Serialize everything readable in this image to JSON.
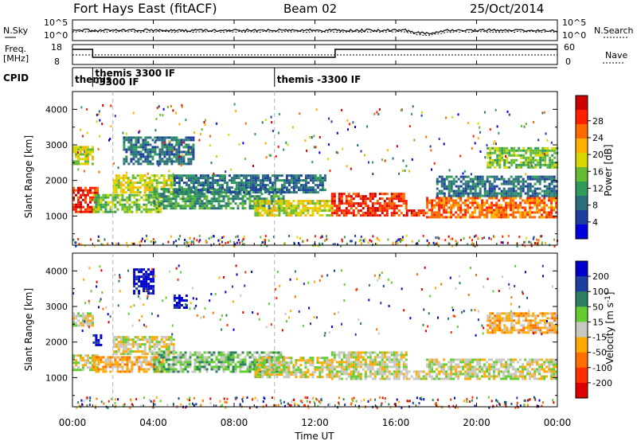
{
  "header": {
    "title": "Fort Hays East (fitACF)",
    "beam": "Beam 02",
    "date": "25/Oct/2014"
  },
  "noise_panel": {
    "left_label": "N.Sky",
    "left_ticks": [
      "10^5",
      "10^0"
    ],
    "right_label": "N.Search",
    "right_ticks": [
      "10^5",
      "10^0"
    ]
  },
  "freq_panel": {
    "left_label_1": "Freq.",
    "left_label_2": "[MHz]",
    "left_ticks": [
      "18",
      "8"
    ],
    "right_label": "Nave",
    "right_ticks": [
      "60",
      "0"
    ]
  },
  "cpid_panel": {
    "label": "CPID",
    "segments": [
      {
        "start_hour": 0.0,
        "end_hour": 1.0,
        "text": [
          "themis"
        ]
      },
      {
        "start_hour": 1.0,
        "end_hour": 10.0,
        "text": [
          "themis 3300 IF",
          "-3300 IF"
        ]
      },
      {
        "start_hour": 10.0,
        "end_hour": 24.0,
        "text": [
          "themis -3300 IF"
        ]
      }
    ]
  },
  "time_axis": {
    "label": "Time UT",
    "ticks": [
      "00:00",
      "04:00",
      "08:00",
      "12:00",
      "16:00",
      "20:00",
      "00:00"
    ]
  },
  "chart_data": [
    {
      "type": "heatmap",
      "name": "power",
      "ylabel": "Slant Range [km]",
      "y_ticks": [
        1000,
        2000,
        3000,
        4000
      ],
      "ylim": [
        180,
        4500
      ],
      "xlim_hours": [
        0,
        24
      ],
      "colorbar": {
        "label": "Power [dB]",
        "ticks": [
          "4",
          "8",
          "12",
          "16",
          "20",
          "24",
          "28"
        ],
        "colors": [
          "#0000dd",
          "#1e3fa0",
          "#2c6e80",
          "#2f9a5a",
          "#66bb33",
          "#d8d800",
          "#ffb000",
          "#ff6a00",
          "#ff2000",
          "#cc0000"
        ]
      },
      "echo_bands": [
        {
          "t0": 0.0,
          "t1": 1.3,
          "r0": 1150,
          "r1": 1850,
          "level": 8
        },
        {
          "t0": 0.0,
          "t1": 1.0,
          "r0": 2500,
          "r1": 3000,
          "level": 5
        },
        {
          "t0": 1.0,
          "t1": 4.5,
          "r0": 1150,
          "r1": 1650,
          "level": 4
        },
        {
          "t0": 2.0,
          "t1": 5.0,
          "r0": 1700,
          "r1": 2200,
          "level": 5
        },
        {
          "t0": 2.5,
          "t1": 6.0,
          "r0": 2500,
          "r1": 3300,
          "level": 2
        },
        {
          "t0": 4.0,
          "t1": 10.5,
          "r0": 1250,
          "r1": 1800,
          "level": 3
        },
        {
          "t0": 5.0,
          "t1": 12.5,
          "r0": 1700,
          "r1": 2200,
          "level": 2
        },
        {
          "t0": 9.0,
          "t1": 12.8,
          "r0": 1050,
          "r1": 1500,
          "level": 5
        },
        {
          "t0": 12.8,
          "t1": 16.5,
          "r0": 1050,
          "r1": 1700,
          "level": 8
        },
        {
          "t0": 16.5,
          "t1": 17.5,
          "r0": 1050,
          "r1": 1250,
          "level": 8
        },
        {
          "t0": 17.5,
          "t1": 24.0,
          "r0": 1000,
          "r1": 1600,
          "level": 7
        },
        {
          "t0": 18.0,
          "t1": 24.0,
          "r0": 1600,
          "r1": 2200,
          "level": 2
        },
        {
          "t0": 20.5,
          "t1": 24.0,
          "r0": 2400,
          "r1": 3000,
          "level": 4
        }
      ]
    },
    {
      "type": "heatmap",
      "name": "velocity",
      "ylabel": "Slant Range [km]",
      "y_ticks": [
        1000,
        2000,
        3000,
        4000
      ],
      "ylim": [
        180,
        4500
      ],
      "xlim_hours": [
        0,
        24
      ],
      "colorbar": {
        "label": "Velocity [m s^-1]",
        "ticks": [
          "200",
          "100",
          "50",
          "15",
          "-15",
          "-50",
          "-100",
          "-200"
        ],
        "colors": [
          "#0000cc",
          "#1e3fa0",
          "#2c7f60",
          "#66cc33",
          "#c8c8c0",
          "#ffaa00",
          "#ff7000",
          "#ff3000",
          "#dd0000"
        ]
      },
      "echo_bands": [
        {
          "t0": 0.0,
          "t1": 1.3,
          "r0": 1250,
          "r1": 1700,
          "level": 4
        },
        {
          "t0": 0.0,
          "t1": 1.0,
          "r0": 2500,
          "r1": 2900,
          "level": 4
        },
        {
          "t0": 1.0,
          "t1": 1.4,
          "r0": 1950,
          "r1": 2250,
          "level": 0
        },
        {
          "t0": 3.0,
          "t1": 4.0,
          "r0": 3400,
          "r1": 4100,
          "level": 0
        },
        {
          "t0": 5.0,
          "t1": 5.6,
          "r0": 3000,
          "r1": 3400,
          "level": 0
        },
        {
          "t0": 1.0,
          "t1": 4.5,
          "r0": 1200,
          "r1": 1650,
          "level": 5
        },
        {
          "t0": 2.0,
          "t1": 5.0,
          "r0": 1700,
          "r1": 2200,
          "level": 4
        },
        {
          "t0": 4.0,
          "t1": 10.5,
          "r0": 1200,
          "r1": 1800,
          "level": 3
        },
        {
          "t0": 9.0,
          "t1": 12.8,
          "r0": 1050,
          "r1": 1600,
          "level": 4
        },
        {
          "t0": 12.8,
          "t1": 16.5,
          "r0": 1000,
          "r1": 1800,
          "level": 4
        },
        {
          "t0": 16.5,
          "t1": 17.5,
          "r0": 1000,
          "r1": 1250,
          "level": 4
        },
        {
          "t0": 17.5,
          "t1": 24.0,
          "r0": 1000,
          "r1": 1600,
          "level": 4
        },
        {
          "t0": 20.5,
          "t1": 24.0,
          "r0": 2300,
          "r1": 2900,
          "level": 5
        }
      ]
    }
  ],
  "colors": {
    "frame": "#000000",
    "dashed_marker": "#b0b0b0",
    "background": "#ffffff"
  }
}
